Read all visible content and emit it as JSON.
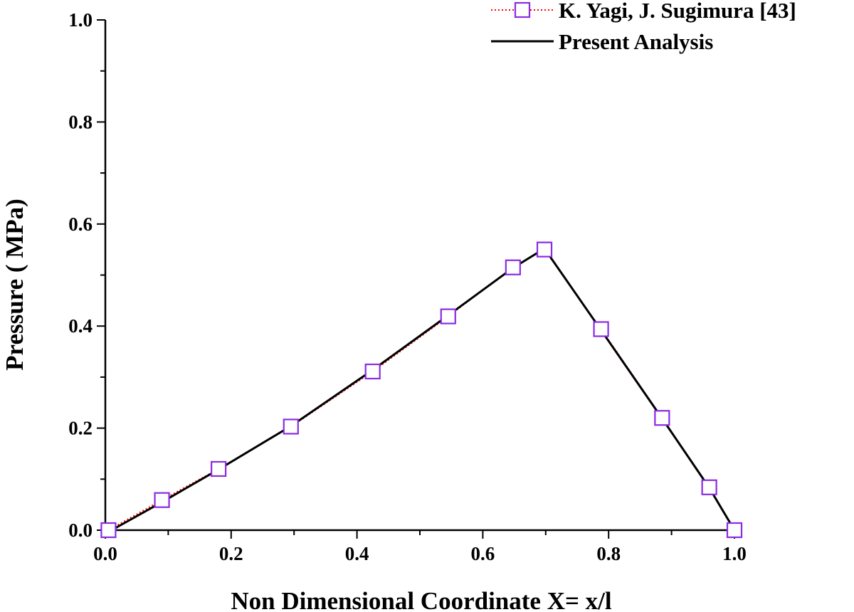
{
  "chart_data": {
    "type": "line",
    "xlabel": "Non Dimensional Coordinate X= x/l",
    "ylabel": "Pressure ( MPa)",
    "xlim": [
      0.0,
      1.0
    ],
    "ylim": [
      0.0,
      1.0
    ],
    "x_ticks": [
      "0.0",
      "0.2",
      "0.4",
      "0.6",
      "0.8",
      "1.0"
    ],
    "y_ticks": [
      "0.0",
      "0.2",
      "0.4",
      "0.6",
      "0.8",
      "1.0"
    ],
    "grid": false,
    "legend_position": "top-right",
    "series": [
      {
        "name": "K. Yagi,  J. Sugimura [43]",
        "style": "dotted line with open square markers",
        "line_color": "#ff0000",
        "marker_color": "#8a2be2",
        "x": [
          0.005,
          0.09,
          0.18,
          0.295,
          0.425,
          0.545,
          0.648,
          0.698,
          0.788,
          0.885,
          0.96,
          1.0
        ],
        "y": [
          0.0,
          0.059,
          0.12,
          0.203,
          0.311,
          0.419,
          0.515,
          0.55,
          0.394,
          0.22,
          0.084,
          0.0
        ]
      },
      {
        "name": "Present Analysis",
        "style": "solid line",
        "line_color": "#000000",
        "x": [
          0.01,
          0.09,
          0.18,
          0.295,
          0.425,
          0.545,
          0.648,
          0.698,
          0.788,
          0.885,
          0.96,
          1.0
        ],
        "y": [
          0.0,
          0.055,
          0.119,
          0.204,
          0.314,
          0.421,
          0.514,
          0.552,
          0.392,
          0.219,
          0.083,
          0.0
        ]
      }
    ]
  }
}
